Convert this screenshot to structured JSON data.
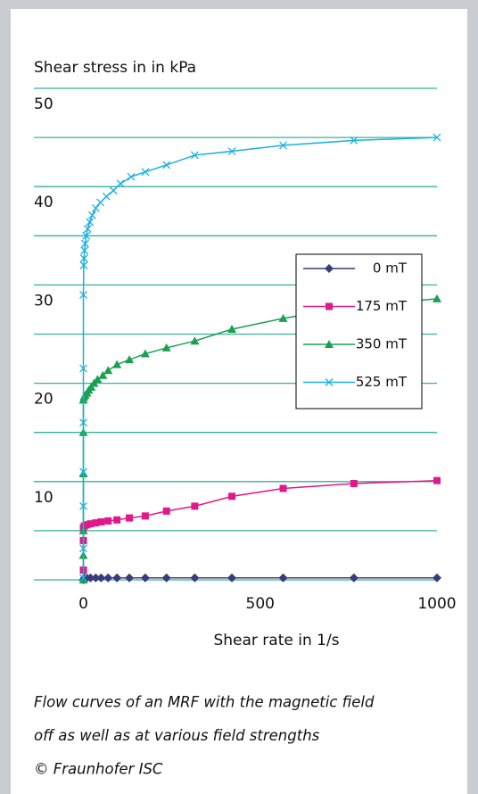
{
  "chart_data": {
    "type": "scatter_line",
    "y_label": "Shear stress in in kPa",
    "x_label": "Shear rate in 1/s",
    "xlim": [
      -140,
      1000
    ],
    "xticks": [
      0,
      500,
      1000
    ],
    "ylim": [
      0,
      50
    ],
    "yticks": [
      10,
      20,
      30,
      40,
      50
    ],
    "grid_values": [
      0,
      5,
      10,
      15,
      20,
      25,
      30,
      35,
      40,
      45,
      50
    ],
    "grid_color": "#36b39a",
    "series": [
      {
        "name": "0 mT",
        "color": "#3a3a7c",
        "marker": "diamond",
        "x": [
          0,
          3,
          10,
          20,
          35,
          50,
          70,
          95,
          130,
          175,
          235,
          315,
          420,
          565,
          765,
          1000
        ],
        "values": [
          0,
          0.2,
          0.2,
          0.2,
          0.2,
          0.2,
          0.2,
          0.2,
          0.2,
          0.2,
          0.2,
          0.2,
          0.2,
          0.2,
          0.2,
          0.2
        ]
      },
      {
        "name": "175 mT",
        "color": "#e0188a",
        "marker": "square",
        "x": [
          0,
          0,
          0,
          3,
          10,
          20,
          35,
          50,
          70,
          95,
          130,
          175,
          235,
          315,
          420,
          565,
          765,
          1000
        ],
        "values": [
          1,
          4,
          5.3,
          5.5,
          5.6,
          5.7,
          5.8,
          5.9,
          6,
          6.1,
          6.3,
          6.5,
          7,
          7.5,
          8.5,
          9.3,
          9.8,
          10.1
        ]
      },
      {
        "name": "350 mT",
        "color": "#1aa050",
        "marker": "triangle",
        "x": [
          0,
          0,
          0,
          0,
          0,
          0,
          2,
          5,
          10,
          15,
          22,
          30,
          40,
          55,
          70,
          95,
          130,
          175,
          235,
          315,
          420,
          565,
          765,
          1000
        ],
        "values": [
          0,
          2.5,
          5,
          10.8,
          15,
          18.3,
          18.6,
          18.8,
          19,
          19.3,
          19.6,
          20,
          20.4,
          20.8,
          21.3,
          21.9,
          22.4,
          23,
          23.6,
          24.3,
          25.5,
          26.6,
          27.8,
          28.6
        ]
      },
      {
        "name": "525 mT",
        "color": "#1ab0e0",
        "marker": "x",
        "x": [
          0,
          0,
          0,
          0,
          0,
          0,
          0,
          1,
          2,
          3,
          5,
          8,
          12,
          18,
          25,
          35,
          48,
          65,
          85,
          105,
          135,
          175,
          235,
          315,
          420,
          565,
          765,
          1000
        ],
        "values": [
          0.2,
          3.2,
          7.5,
          11,
          16,
          21.5,
          29,
          32,
          32.7,
          33.5,
          34.2,
          35,
          35.7,
          36.4,
          37.1,
          37.8,
          38.4,
          39,
          39.6,
          40.3,
          41,
          41.5,
          42.2,
          43.2,
          43.6,
          44.2,
          44.7,
          45
        ]
      }
    ],
    "caption": [
      "Flow curves of an MRF with the magnetic field",
      "off as well as at various field strengths",
      "© Fraunhofer ISC"
    ]
  }
}
